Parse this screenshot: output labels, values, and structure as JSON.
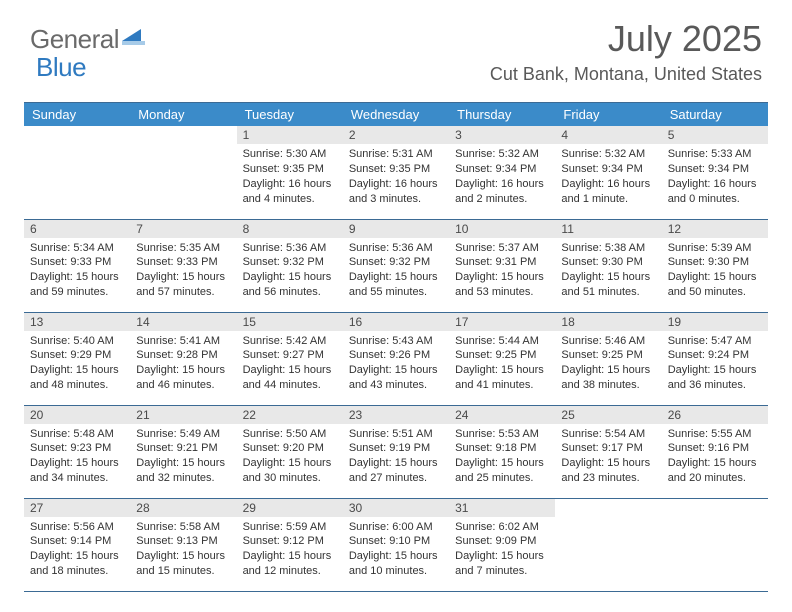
{
  "logo": {
    "word1": "General",
    "word2": "Blue"
  },
  "title": "July 2025",
  "subtitle": "Cut Bank, Montana, United States",
  "colors": {
    "header_bg": "#3b8bc9",
    "header_text": "#ffffff",
    "daynum_bg": "#e8e8e8",
    "rule": "#3b6a94",
    "title_color": "#595959",
    "logo_gray": "#6a6a6a",
    "logo_blue": "#2f7ac0"
  },
  "day_headers": [
    "Sunday",
    "Monday",
    "Tuesday",
    "Wednesday",
    "Thursday",
    "Friday",
    "Saturday"
  ],
  "first_day_index": 2,
  "days": [
    {
      "n": 1,
      "sr": "5:30 AM",
      "ss": "9:35 PM",
      "dl": "16 hours and 4 minutes"
    },
    {
      "n": 2,
      "sr": "5:31 AM",
      "ss": "9:35 PM",
      "dl": "16 hours and 3 minutes"
    },
    {
      "n": 3,
      "sr": "5:32 AM",
      "ss": "9:34 PM",
      "dl": "16 hours and 2 minutes"
    },
    {
      "n": 4,
      "sr": "5:32 AM",
      "ss": "9:34 PM",
      "dl": "16 hours and 1 minute"
    },
    {
      "n": 5,
      "sr": "5:33 AM",
      "ss": "9:34 PM",
      "dl": "16 hours and 0 minutes"
    },
    {
      "n": 6,
      "sr": "5:34 AM",
      "ss": "9:33 PM",
      "dl": "15 hours and 59 minutes"
    },
    {
      "n": 7,
      "sr": "5:35 AM",
      "ss": "9:33 PM",
      "dl": "15 hours and 57 minutes"
    },
    {
      "n": 8,
      "sr": "5:36 AM",
      "ss": "9:32 PM",
      "dl": "15 hours and 56 minutes"
    },
    {
      "n": 9,
      "sr": "5:36 AM",
      "ss": "9:32 PM",
      "dl": "15 hours and 55 minutes"
    },
    {
      "n": 10,
      "sr": "5:37 AM",
      "ss": "9:31 PM",
      "dl": "15 hours and 53 minutes"
    },
    {
      "n": 11,
      "sr": "5:38 AM",
      "ss": "9:30 PM",
      "dl": "15 hours and 51 minutes"
    },
    {
      "n": 12,
      "sr": "5:39 AM",
      "ss": "9:30 PM",
      "dl": "15 hours and 50 minutes"
    },
    {
      "n": 13,
      "sr": "5:40 AM",
      "ss": "9:29 PM",
      "dl": "15 hours and 48 minutes"
    },
    {
      "n": 14,
      "sr": "5:41 AM",
      "ss": "9:28 PM",
      "dl": "15 hours and 46 minutes"
    },
    {
      "n": 15,
      "sr": "5:42 AM",
      "ss": "9:27 PM",
      "dl": "15 hours and 44 minutes"
    },
    {
      "n": 16,
      "sr": "5:43 AM",
      "ss": "9:26 PM",
      "dl": "15 hours and 43 minutes"
    },
    {
      "n": 17,
      "sr": "5:44 AM",
      "ss": "9:25 PM",
      "dl": "15 hours and 41 minutes"
    },
    {
      "n": 18,
      "sr": "5:46 AM",
      "ss": "9:25 PM",
      "dl": "15 hours and 38 minutes"
    },
    {
      "n": 19,
      "sr": "5:47 AM",
      "ss": "9:24 PM",
      "dl": "15 hours and 36 minutes"
    },
    {
      "n": 20,
      "sr": "5:48 AM",
      "ss": "9:23 PM",
      "dl": "15 hours and 34 minutes"
    },
    {
      "n": 21,
      "sr": "5:49 AM",
      "ss": "9:21 PM",
      "dl": "15 hours and 32 minutes"
    },
    {
      "n": 22,
      "sr": "5:50 AM",
      "ss": "9:20 PM",
      "dl": "15 hours and 30 minutes"
    },
    {
      "n": 23,
      "sr": "5:51 AM",
      "ss": "9:19 PM",
      "dl": "15 hours and 27 minutes"
    },
    {
      "n": 24,
      "sr": "5:53 AM",
      "ss": "9:18 PM",
      "dl": "15 hours and 25 minutes"
    },
    {
      "n": 25,
      "sr": "5:54 AM",
      "ss": "9:17 PM",
      "dl": "15 hours and 23 minutes"
    },
    {
      "n": 26,
      "sr": "5:55 AM",
      "ss": "9:16 PM",
      "dl": "15 hours and 20 minutes"
    },
    {
      "n": 27,
      "sr": "5:56 AM",
      "ss": "9:14 PM",
      "dl": "15 hours and 18 minutes"
    },
    {
      "n": 28,
      "sr": "5:58 AM",
      "ss": "9:13 PM",
      "dl": "15 hours and 15 minutes"
    },
    {
      "n": 29,
      "sr": "5:59 AM",
      "ss": "9:12 PM",
      "dl": "15 hours and 12 minutes"
    },
    {
      "n": 30,
      "sr": "6:00 AM",
      "ss": "9:10 PM",
      "dl": "15 hours and 10 minutes"
    },
    {
      "n": 31,
      "sr": "6:02 AM",
      "ss": "9:09 PM",
      "dl": "15 hours and 7 minutes"
    }
  ],
  "labels": {
    "sunrise": "Sunrise:",
    "sunset": "Sunset:",
    "daylight": "Daylight:"
  }
}
